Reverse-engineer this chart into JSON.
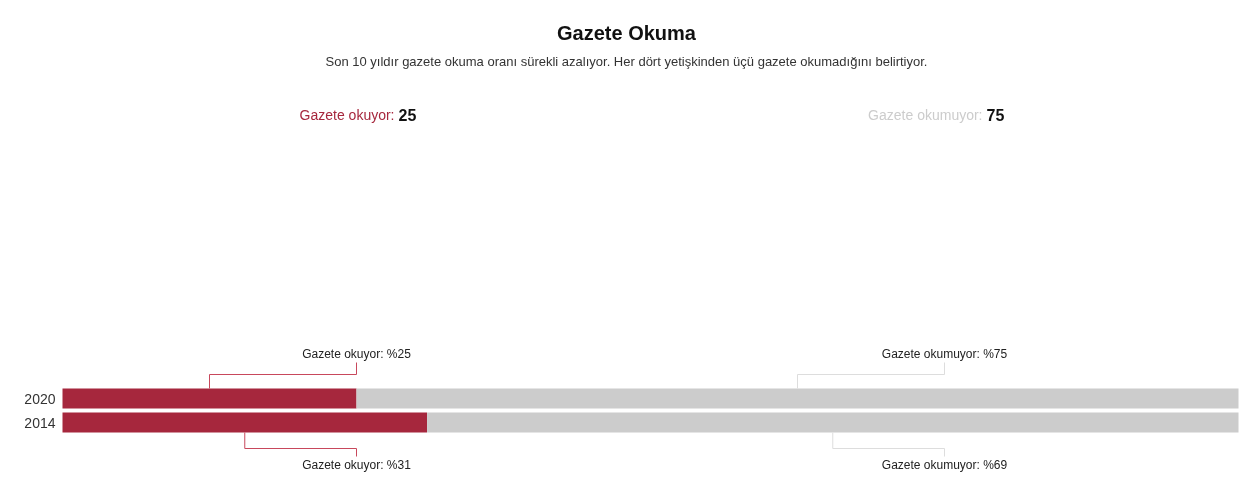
{
  "chart_data": {
    "type": "bar",
    "orientation": "horizontal",
    "stacked": true,
    "title": "Gazete Okuma",
    "subtitle": "Son 10 yıldır gazete okuma oranı sürekli azalıyor. Her dört yetişkinden üçü gazete okumadığını belirtiyor.",
    "categories": [
      "2020",
      "2014"
    ],
    "series": [
      {
        "name": "Gazete okuyor:",
        "color": "#a6273d",
        "values": [
          25,
          31
        ],
        "value_labels": [
          "Gazete okuyor: %25",
          "Gazete okuyor: %31"
        ]
      },
      {
        "name": "Gazete okumuyor:",
        "color": "#cccccc",
        "values": [
          75,
          69
        ],
        "value_labels": [
          "Gazete okumuyor: %75",
          "Gazete okumuyor: %69"
        ]
      }
    ],
    "annotations": [
      "25",
      "75"
    ]
  }
}
